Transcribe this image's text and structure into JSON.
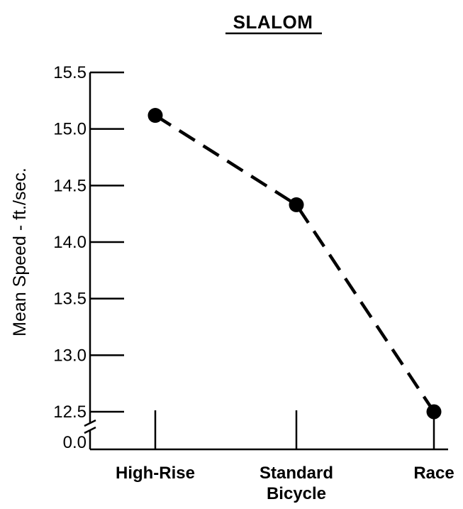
{
  "chart_data": {
    "type": "line",
    "title": "SLALOM",
    "ylabel": "Mean Speed - ft./sec.",
    "xlabel": "",
    "categories": [
      [
        "High-Rise"
      ],
      [
        "Standard",
        "Bicycle"
      ],
      [
        "Race"
      ]
    ],
    "series": [
      {
        "values": [
          15.12,
          14.33,
          12.5
        ],
        "style": "dashed",
        "marker": "filled-circle",
        "color": "#000000"
      }
    ],
    "yticks": [
      "15.5",
      "15.0",
      "14.5",
      "14.0",
      "13.5",
      "13.0",
      "12.5",
      "0.0"
    ],
    "ylim": [
      12.25,
      15.5
    ],
    "axis_break": true,
    "grid": false,
    "legend": "none"
  }
}
